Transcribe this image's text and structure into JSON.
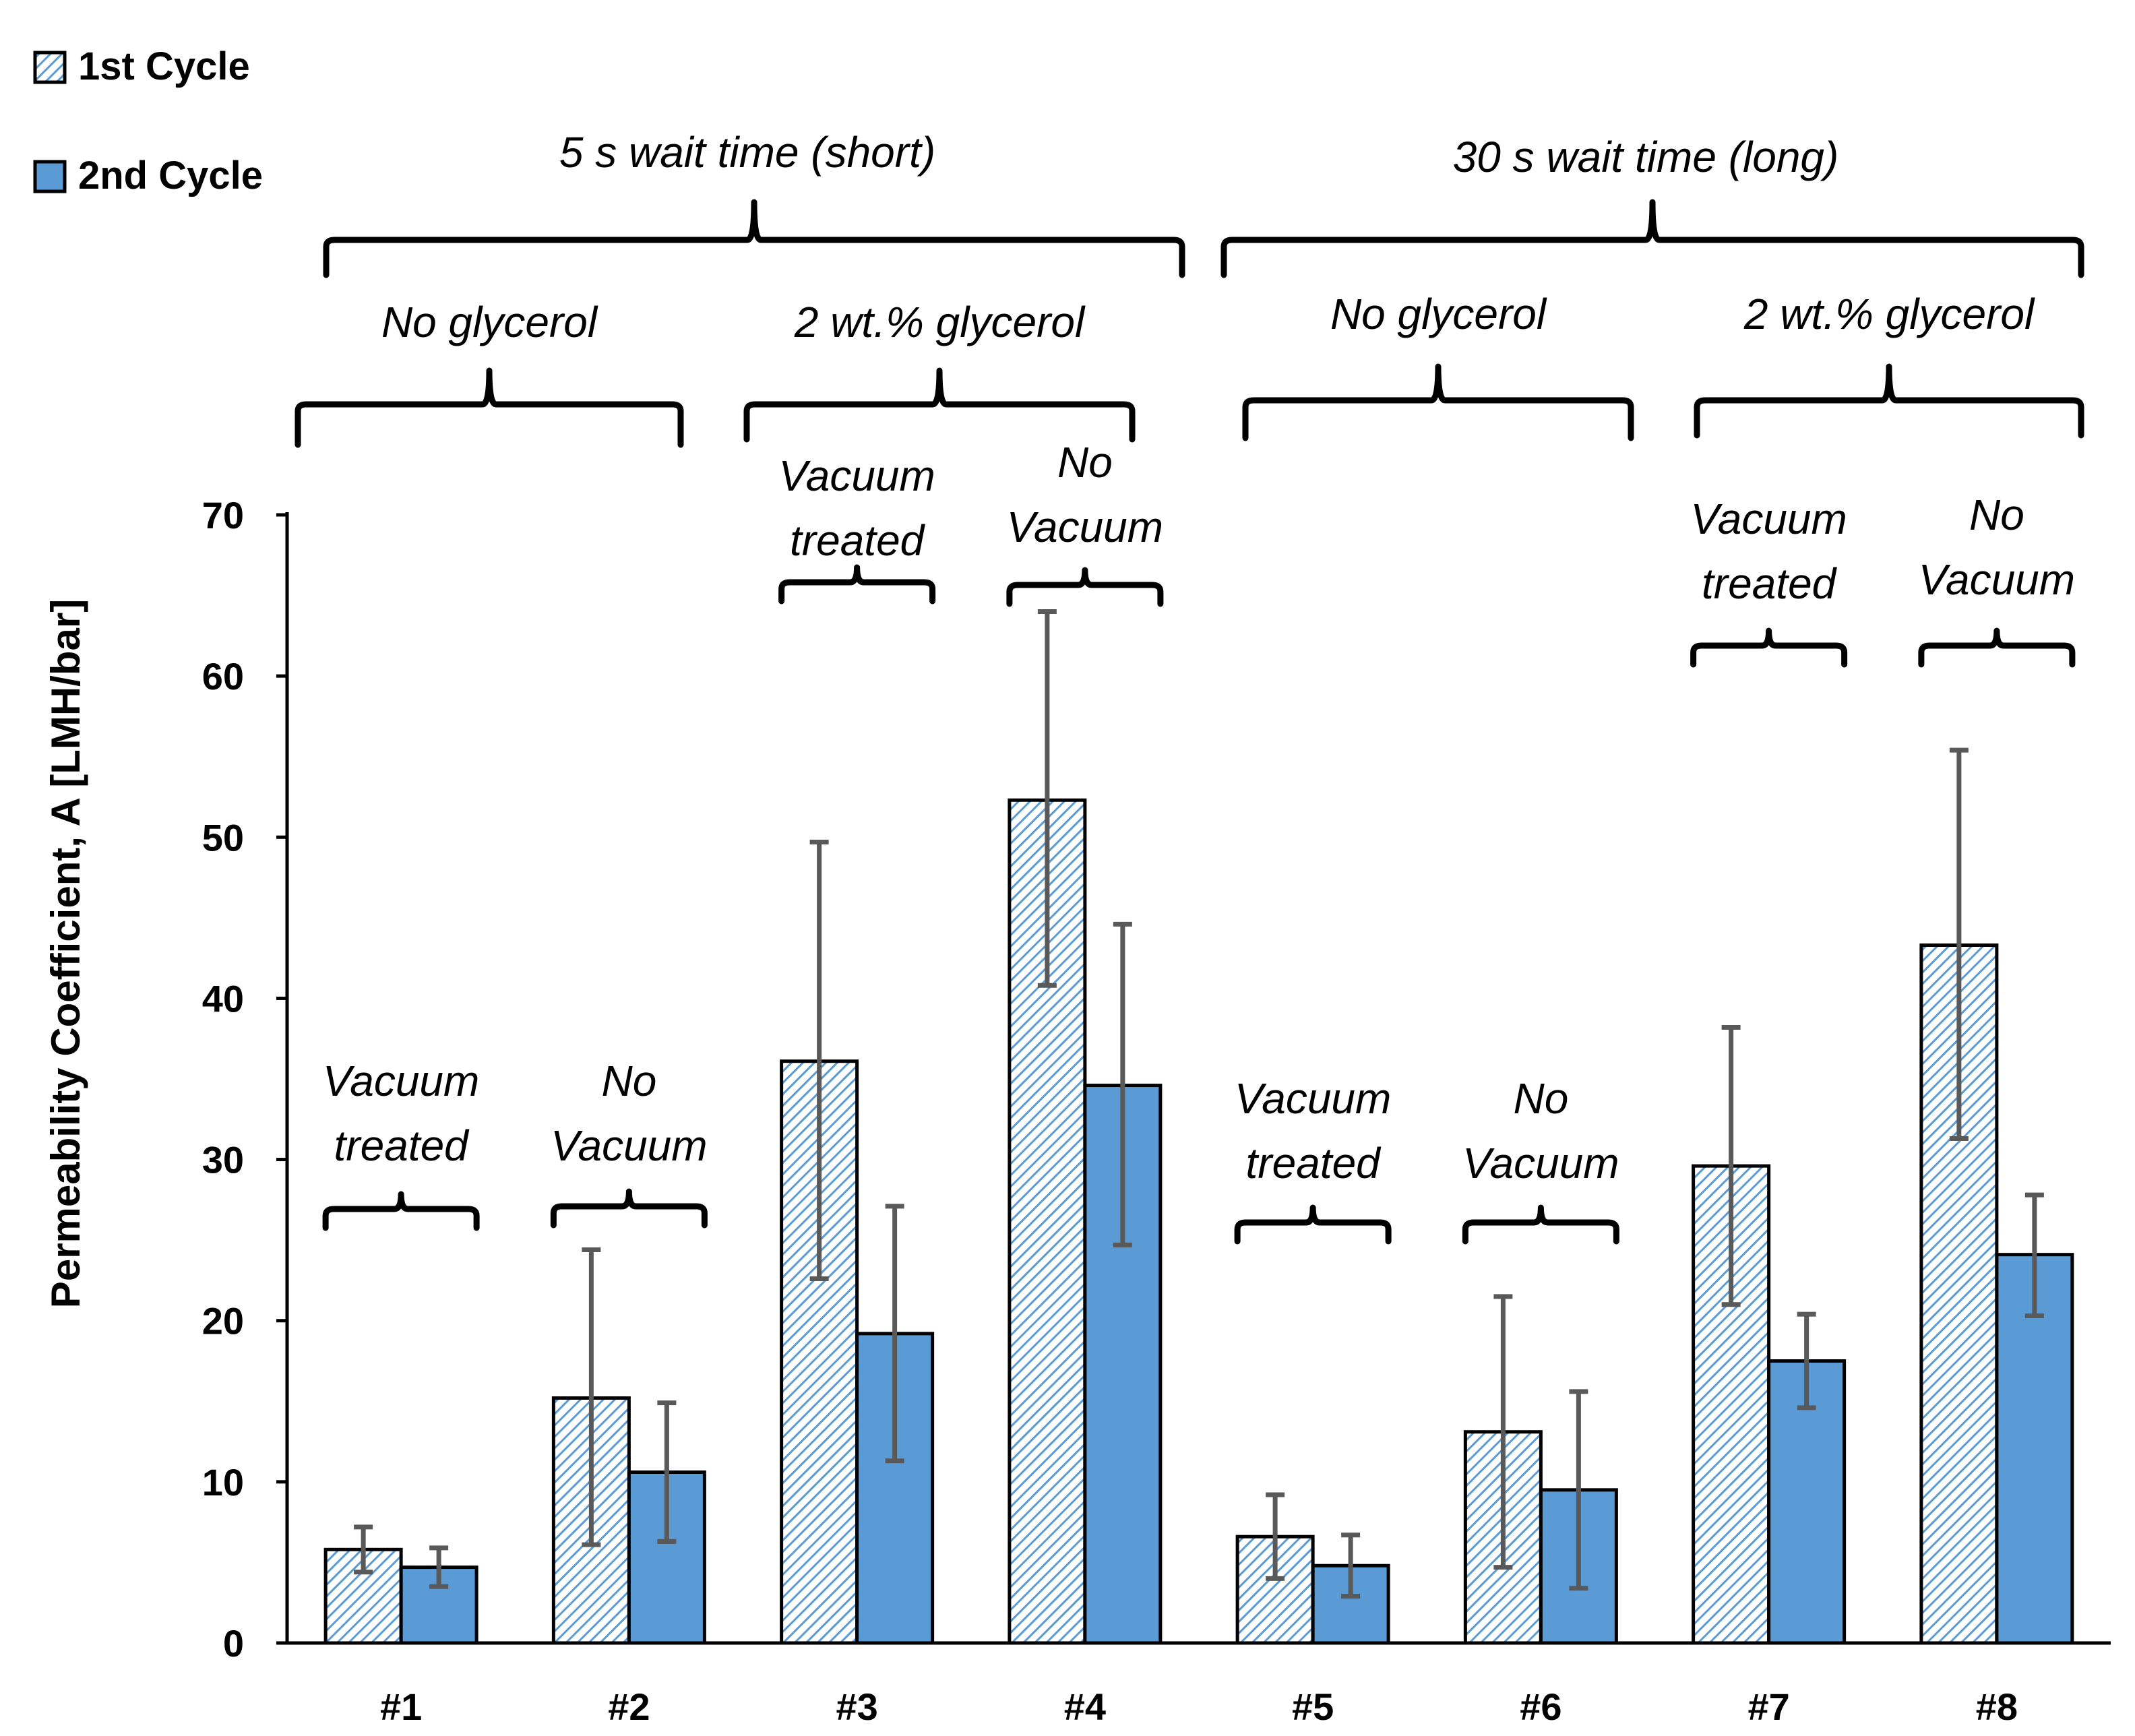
{
  "chart_data": {
    "type": "bar",
    "title": "",
    "xlabel": "",
    "ylabel": "Permeability Coefficient, A [LMH/bar]",
    "ylim": [
      0,
      70
    ],
    "yticks": [
      0,
      10,
      20,
      30,
      40,
      50,
      60,
      70
    ],
    "categories": [
      "#1",
      "#2",
      "#3",
      "#4",
      "#5",
      "#6",
      "#7",
      "#8"
    ],
    "series": [
      {
        "name": "1st Cycle",
        "pattern": "hatched",
        "color": "#5B9BD5",
        "values": [
          5.8,
          15.2,
          36.1,
          52.3,
          6.6,
          13.1,
          29.6,
          43.3
        ],
        "error_low": [
          4.4,
          6.1,
          22.6,
          40.8,
          4.0,
          4.7,
          21.0,
          31.3
        ],
        "error_high": [
          7.2,
          24.4,
          49.7,
          64.0,
          9.2,
          21.5,
          38.2,
          55.4
        ]
      },
      {
        "name": "2nd Cycle",
        "pattern": "solid",
        "color": "#5B9BD5",
        "values": [
          4.7,
          10.6,
          19.2,
          34.6,
          4.8,
          9.5,
          17.5,
          24.1
        ],
        "error_low": [
          3.5,
          6.3,
          11.3,
          24.7,
          2.9,
          3.4,
          14.6,
          20.3
        ],
        "error_high": [
          5.9,
          14.9,
          27.1,
          44.6,
          6.7,
          15.6,
          20.4,
          27.8
        ]
      }
    ],
    "annotations": {
      "wait_time_groups": [
        {
          "label": "5 s wait time (short)",
          "categories": [
            "#1",
            "#2",
            "#3",
            "#4"
          ]
        },
        {
          "label": "30 s wait time (long)",
          "categories": [
            "#5",
            "#6",
            "#7",
            "#8"
          ]
        }
      ],
      "glycerol_groups": [
        {
          "label": "No glycerol",
          "categories": [
            "#1",
            "#2"
          ]
        },
        {
          "label": "2 wt.% glycerol",
          "categories": [
            "#3",
            "#4"
          ]
        },
        {
          "label": "No glycerol",
          "categories": [
            "#5",
            "#6"
          ]
        },
        {
          "label": "2 wt.% glycerol",
          "categories": [
            "#7",
            "#8"
          ]
        }
      ],
      "vacuum_labels": [
        {
          "category": "#1",
          "lines": [
            "Vacuum",
            "treated"
          ]
        },
        {
          "category": "#2",
          "lines": [
            "No",
            "Vacuum"
          ]
        },
        {
          "category": "#3",
          "lines": [
            "Vacuum",
            "treated"
          ]
        },
        {
          "category": "#4",
          "lines": [
            "No",
            "Vacuum"
          ]
        },
        {
          "category": "#5",
          "lines": [
            "Vacuum",
            "treated"
          ]
        },
        {
          "category": "#6",
          "lines": [
            "No",
            "Vacuum"
          ]
        },
        {
          "category": "#7",
          "lines": [
            "Vacuum",
            "treated"
          ]
        },
        {
          "category": "#8",
          "lines": [
            "No",
            "Vacuum"
          ]
        }
      ]
    },
    "legend": {
      "position": "top-left",
      "entries": [
        "1st Cycle",
        "2nd Cycle"
      ]
    },
    "colors": {
      "bar": "#5B9BD5",
      "bar_outline": "#000000",
      "error_bar": "#595959"
    }
  }
}
